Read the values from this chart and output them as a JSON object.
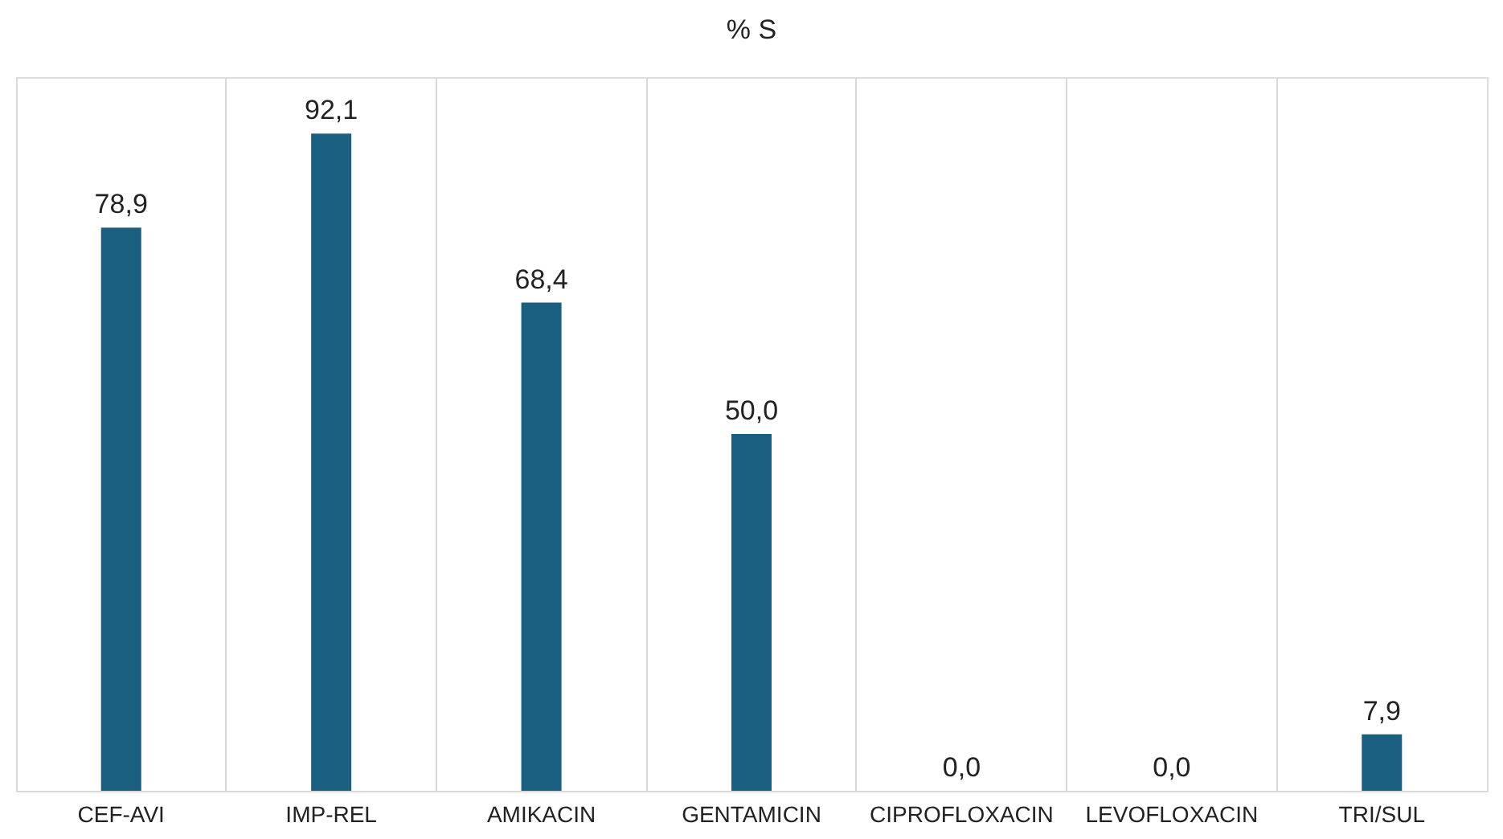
{
  "chart_data": {
    "type": "bar",
    "title": "% S",
    "categories": [
      "CEF-AVI",
      "IMP-REL",
      "AMIKACIN",
      "GENTAMICIN",
      "CIPROFLOXACIN",
      "LEVOFLOXACIN",
      "TRI/SUL"
    ],
    "values": [
      78.9,
      92.1,
      68.4,
      50.0,
      0.0,
      0.0,
      7.9
    ],
    "value_labels": [
      "78,9",
      "92,1",
      "68,4",
      "50,0",
      "0,0",
      "0,0",
      "7,9"
    ],
    "color": "#1a5f80",
    "grid": "x",
    "tick_labels": "x"
  }
}
